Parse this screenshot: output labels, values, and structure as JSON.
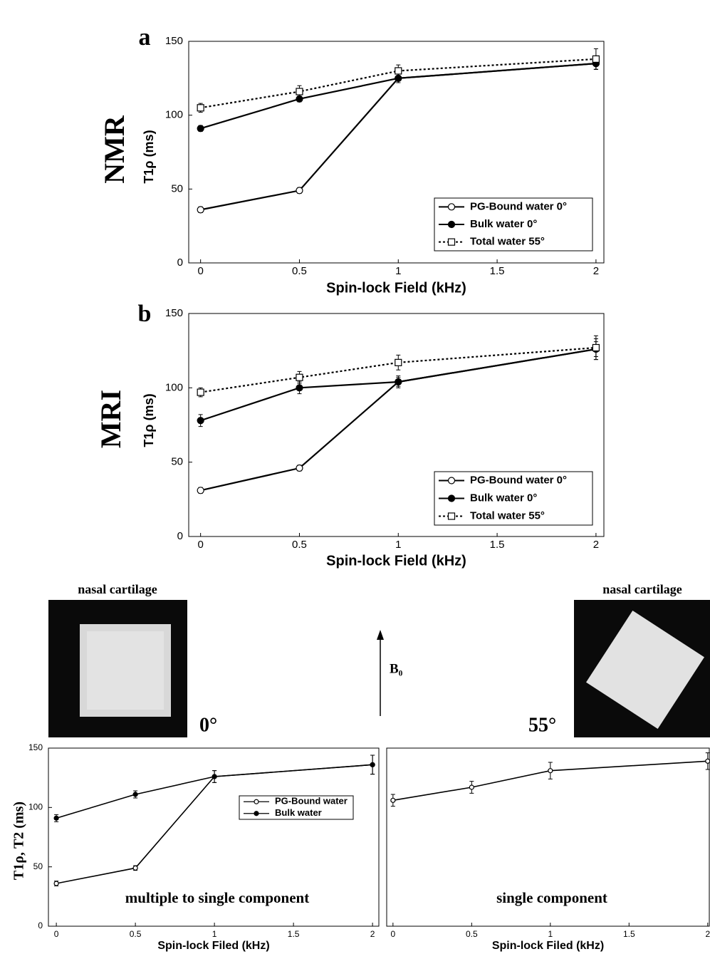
{
  "chart_data": [
    {
      "type": "line",
      "panel": "a",
      "title": "NMR",
      "xlabel": "Spin-lock Field (kHz)",
      "ylabel": "T1ρ (ms)",
      "x": [
        0,
        0.5,
        1,
        2
      ],
      "xlim": [
        -0.06,
        2.04
      ],
      "xticks": [
        0,
        0.5,
        1,
        1.5,
        2
      ],
      "ylim": [
        0,
        150
      ],
      "yticks": [
        0,
        50,
        100,
        150
      ],
      "legend": "lower right",
      "series": [
        {
          "name": "PG-Bound water 0°",
          "color": "#000000",
          "marker": "open-circle",
          "linestyle": "solid",
          "values": [
            36,
            49,
            125,
            135
          ],
          "errors": [
            2,
            2,
            3,
            4
          ]
        },
        {
          "name": "Bulk water 0°",
          "color": "#000000",
          "marker": "filled-circle",
          "linestyle": "solid",
          "values": [
            91,
            111,
            125,
            135
          ],
          "errors": [
            2,
            2,
            3,
            4
          ]
        },
        {
          "name": "Total water 55°",
          "color": "#000000",
          "marker": "open-square",
          "linestyle": "dotted",
          "values": [
            105,
            116,
            130,
            138
          ],
          "errors": [
            3,
            4,
            4,
            7
          ]
        }
      ]
    },
    {
      "type": "line",
      "panel": "b",
      "title": "MRI",
      "xlabel": "Spin-lock Field (kHz)",
      "ylabel": "T1ρ (ms)",
      "x": [
        0,
        0.5,
        1,
        2
      ],
      "xlim": [
        -0.06,
        2.04
      ],
      "xticks": [
        0,
        0.5,
        1,
        1.5,
        2
      ],
      "ylim": [
        0,
        150
      ],
      "yticks": [
        0,
        50,
        100,
        150
      ],
      "legend": "lower right",
      "series": [
        {
          "name": "PG-Bound water 0°",
          "color": "#000000",
          "marker": "open-circle",
          "linestyle": "solid",
          "values": [
            31,
            46,
            104,
            126
          ],
          "errors": [
            2,
            2,
            3,
            5
          ]
        },
        {
          "name": "Bulk water 0°",
          "color": "#000000",
          "marker": "filled-circle",
          "linestyle": "solid",
          "values": [
            78,
            100,
            104,
            126
          ],
          "errors": [
            4,
            4,
            4,
            7
          ]
        },
        {
          "name": "Total water 55°",
          "color": "#000000",
          "marker": "open-square",
          "linestyle": "dotted",
          "values": [
            97,
            107,
            117,
            127
          ],
          "errors": [
            3,
            4,
            5,
            8
          ]
        }
      ]
    },
    {
      "type": "line",
      "xlabel": "Spin-lock Filed (kHz)",
      "ylabel": "T1ρ, T2 (ms)",
      "annotation": "multiple to single component",
      "x": [
        0,
        0.5,
        1,
        2
      ],
      "xlim": [
        -0.05,
        2.04
      ],
      "xticks": [
        0,
        0.5,
        1,
        1.5,
        2
      ],
      "ylim": [
        0,
        150
      ],
      "yticks": [
        0,
        50,
        100,
        150
      ],
      "legend": "upper right",
      "series": [
        {
          "name": "PG-Bound water",
          "color": "#000000",
          "marker": "open-circle",
          "linestyle": "solid",
          "values": [
            36,
            49,
            126,
            136
          ],
          "errors": [
            2,
            2,
            5,
            8
          ]
        },
        {
          "name": "Bulk water",
          "color": "#000000",
          "marker": "filled-circle",
          "linestyle": "solid",
          "values": [
            91,
            111,
            126,
            136
          ],
          "errors": [
            3,
            3,
            5,
            8
          ]
        }
      ]
    },
    {
      "type": "line",
      "xlabel": "Spin-lock Filed (kHz)",
      "annotation": "single component",
      "x": [
        0,
        0.5,
        1,
        2
      ],
      "xlim": [
        -0.04,
        2.01
      ],
      "xticks": [
        0,
        0.5,
        1,
        1.5,
        2
      ],
      "ylim": [
        0,
        150
      ],
      "series": [
        {
          "color": "#000000",
          "marker": "open-circle",
          "linestyle": "solid",
          "values": [
            106,
            117,
            131,
            139
          ],
          "errors": [
            5,
            5,
            7,
            7
          ]
        }
      ]
    }
  ],
  "figure": {
    "left_image_label": "nasal cartilage",
    "right_image_label": "nasal cartilage",
    "left_angle": "0°",
    "right_angle": "55°",
    "field": "B₀"
  }
}
